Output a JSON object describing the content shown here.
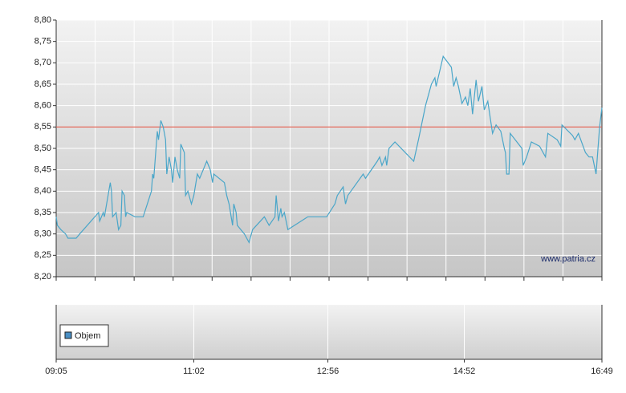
{
  "chart_data": {
    "type": "line",
    "xlim": [
      545,
      1009
    ],
    "xticks": [
      {
        "value": 545,
        "label": "09:05"
      },
      {
        "value": 662,
        "label": "11:02"
      },
      {
        "value": 776,
        "label": "12:56"
      },
      {
        "value": 892,
        "label": "14:52"
      },
      {
        "value": 1009,
        "label": "16:49"
      }
    ],
    "ylim": [
      8.2,
      8.8
    ],
    "yticks": [
      {
        "value": 8.2,
        "label": "8,20"
      },
      {
        "value": 8.25,
        "label": "8,25"
      },
      {
        "value": 8.3,
        "label": "8,30"
      },
      {
        "value": 8.35,
        "label": "8,35"
      },
      {
        "value": 8.4,
        "label": "8,40"
      },
      {
        "value": 8.45,
        "label": "8,45"
      },
      {
        "value": 8.5,
        "label": "8,50"
      },
      {
        "value": 8.55,
        "label": "8,55"
      },
      {
        "value": 8.6,
        "label": "8,60"
      },
      {
        "value": 8.65,
        "label": "8,65"
      },
      {
        "value": 8.7,
        "label": "8,70"
      },
      {
        "value": 8.75,
        "label": "8,75"
      },
      {
        "value": 8.8,
        "label": "8,80"
      }
    ],
    "grid": true,
    "reference_line": {
      "value": 8.55,
      "color": "#e05a4a"
    },
    "watermark": "www.patria.cz",
    "x": [
      545,
      546,
      549,
      553,
      555,
      562,
      565,
      581,
      582,
      585,
      586,
      591,
      592,
      593,
      596,
      598,
      600,
      601,
      603,
      604,
      605,
      612,
      619,
      626,
      627,
      628,
      631,
      632,
      634,
      636,
      638,
      639,
      641,
      643,
      644,
      646,
      648,
      650,
      651,
      654,
      655,
      657,
      660,
      662,
      665,
      667,
      673,
      676,
      678,
      679,
      688,
      690,
      692,
      695,
      696,
      698,
      699,
      705,
      709,
      712,
      722,
      726,
      731,
      732,
      734,
      736,
      737,
      739,
      742,
      759,
      775,
      782,
      784,
      789,
      791,
      793,
      806,
      808,
      818,
      820,
      822,
      825,
      826,
      828,
      833,
      849,
      853,
      859,
      862,
      864,
      867,
      868,
      874,
      881,
      883,
      885,
      887,
      890,
      893,
      895,
      897,
      899,
      902,
      904,
      907,
      909,
      912,
      916,
      919,
      923,
      926,
      927,
      928,
      930,
      931,
      941,
      942,
      945,
      949,
      956,
      961,
      963,
      971,
      974,
      975,
      984,
      986,
      989,
      995,
      998,
      1001,
      1004,
      1007,
      1009
    ],
    "series": [
      {
        "color": "#4aa6c9",
        "values": [
          8.34,
          8.32,
          8.31,
          8.3,
          8.29,
          8.29,
          8.3,
          8.35,
          8.33,
          8.35,
          8.34,
          8.42,
          8.4,
          8.34,
          8.35,
          8.31,
          8.32,
          8.4,
          8.39,
          8.34,
          8.35,
          8.34,
          8.34,
          8.4,
          8.44,
          8.43,
          8.54,
          8.52,
          8.565,
          8.55,
          8.52,
          8.44,
          8.48,
          8.45,
          8.42,
          8.48,
          8.45,
          8.43,
          8.51,
          8.49,
          8.39,
          8.4,
          8.37,
          8.39,
          8.44,
          8.43,
          8.47,
          8.45,
          8.42,
          8.44,
          8.42,
          8.39,
          8.37,
          8.32,
          8.37,
          8.35,
          8.32,
          8.3,
          8.28,
          8.31,
          8.34,
          8.32,
          8.34,
          8.39,
          8.33,
          8.36,
          8.34,
          8.35,
          8.31,
          8.34,
          8.34,
          8.37,
          8.39,
          8.41,
          8.37,
          8.39,
          8.44,
          8.43,
          8.47,
          8.48,
          8.46,
          8.48,
          8.46,
          8.5,
          8.515,
          8.47,
          8.52,
          8.6,
          8.63,
          8.65,
          8.665,
          8.645,
          8.715,
          8.69,
          8.645,
          8.665,
          8.645,
          8.605,
          8.62,
          8.6,
          8.64,
          8.58,
          8.66,
          8.61,
          8.645,
          8.59,
          8.61,
          8.535,
          8.555,
          8.54,
          8.5,
          8.49,
          8.44,
          8.44,
          8.535,
          8.5,
          8.46,
          8.48,
          8.515,
          8.505,
          8.48,
          8.535,
          8.52,
          8.505,
          8.555,
          8.53,
          8.52,
          8.535,
          8.49,
          8.48,
          8.48,
          8.44,
          8.55,
          8.595
        ]
      }
    ],
    "volume": {
      "legend": "Objem",
      "color": "#4a8fc4"
    }
  }
}
